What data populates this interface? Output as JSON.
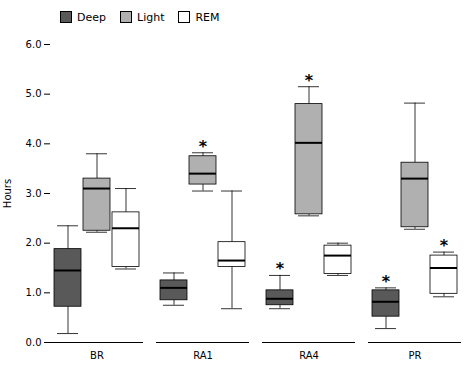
{
  "chart_data": {
    "type": "box",
    "categories": [
      "BR",
      "RA1",
      "RA4",
      "PR"
    ],
    "series": [
      {
        "name": "Deep",
        "color": "#595959",
        "values": [
          {
            "whislo": 0.18,
            "q1": 0.72,
            "med": 1.45,
            "q3": 1.88,
            "whishi": 2.35
          },
          {
            "whislo": 0.75,
            "q1": 0.85,
            "med": 1.1,
            "q3": 1.25,
            "whishi": 1.4
          },
          {
            "whislo": 0.68,
            "q1": 0.75,
            "med": 0.88,
            "q3": 1.05,
            "whishi": 1.35
          },
          {
            "whislo": 0.28,
            "q1": 0.52,
            "med": 0.82,
            "q3": 1.05,
            "whishi": 1.1
          }
        ]
      },
      {
        "name": "Light",
        "color": "#b0b0b0",
        "values": [
          {
            "whislo": 2.22,
            "q1": 2.25,
            "med": 3.1,
            "q3": 3.3,
            "whishi": 3.8
          },
          {
            "whislo": 3.05,
            "q1": 3.18,
            "med": 3.4,
            "q3": 3.75,
            "whishi": 3.82
          },
          {
            "whislo": 2.55,
            "q1": 2.58,
            "med": 4.02,
            "q3": 4.8,
            "whishi": 5.15
          },
          {
            "whislo": 2.28,
            "q1": 2.32,
            "med": 3.3,
            "q3": 3.62,
            "whishi": 4.82
          }
        ]
      },
      {
        "name": "REM",
        "color": "#ffffff",
        "values": [
          {
            "whislo": 1.48,
            "q1": 1.52,
            "med": 2.3,
            "q3": 2.62,
            "whishi": 3.1
          },
          {
            "whislo": 0.68,
            "q1": 1.52,
            "med": 1.65,
            "q3": 2.02,
            "whishi": 3.05
          },
          {
            "whislo": 1.35,
            "q1": 1.38,
            "med": 1.75,
            "q3": 1.95,
            "whishi": 2.0
          },
          {
            "whislo": 0.92,
            "q1": 0.98,
            "med": 1.5,
            "q3": 1.75,
            "whishi": 1.82
          }
        ]
      }
    ],
    "annotations": [
      {
        "category": "RA1",
        "series": "Light",
        "text": "*"
      },
      {
        "category": "RA4",
        "series": "Light",
        "text": "*"
      },
      {
        "category": "RA4",
        "series": "Deep",
        "text": "*"
      },
      {
        "category": "PR",
        "series": "REM",
        "text": "*"
      },
      {
        "category": "PR",
        "series": "Deep",
        "text": "*"
      }
    ],
    "ylabel": "Hours",
    "ylim": [
      0,
      6
    ],
    "yticks": [
      0,
      1,
      2,
      3,
      4,
      5,
      6
    ],
    "grid": false,
    "legend": "upper left"
  }
}
